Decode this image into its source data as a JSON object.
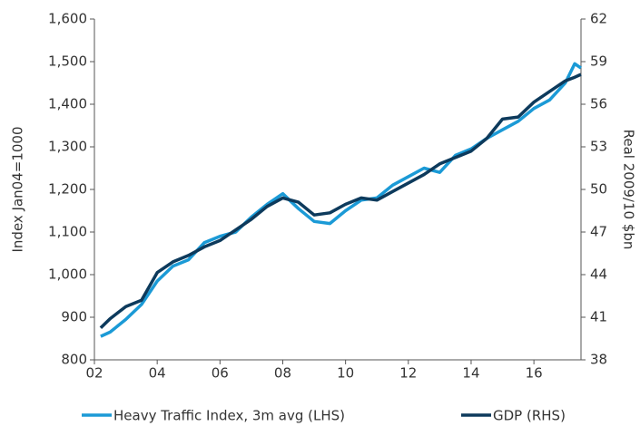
{
  "chart_data": {
    "type": "line",
    "x": [
      2.2,
      2.5,
      3,
      3.5,
      4,
      4.5,
      5,
      5.5,
      6,
      6.5,
      7,
      7.5,
      8,
      8.5,
      9,
      9.5,
      10,
      10.5,
      11,
      11.5,
      12,
      12.5,
      13,
      13.5,
      14,
      14.5,
      15,
      15.5,
      16,
      16.5,
      17,
      17.3,
      17.5
    ],
    "series": [
      {
        "name": "Heavy Traffic Index, 3m avg (LHS)",
        "color": "#1b9ad6",
        "values": [
          855,
          865,
          895,
          930,
          985,
          1020,
          1035,
          1075,
          1090,
          1100,
          1135,
          1165,
          1190,
          1155,
          1125,
          1120,
          1150,
          1175,
          1180,
          1210,
          1230,
          1250,
          1240,
          1280,
          1295,
          1320,
          1340,
          1360,
          1390,
          1410,
          1450,
          1495,
          1485
        ]
      },
      {
        "name": "GDP (RHS)",
        "color": "#0d3a5c",
        "axis": "y2",
        "values": [
          40.25,
          40.9,
          41.75,
          42.2,
          44.15,
          44.9,
          45.35,
          45.95,
          46.4,
          47.15,
          47.9,
          48.8,
          49.4,
          49.1,
          48.2,
          48.35,
          48.95,
          49.4,
          49.25,
          49.85,
          50.45,
          51.05,
          51.8,
          52.25,
          52.7,
          53.6,
          54.95,
          55.1,
          56.15,
          56.9,
          57.65,
          57.9,
          58.1
        ]
      }
    ],
    "xlim": [
      2,
      17.5
    ],
    "xticks": [
      {
        "value": 2,
        "label": "02"
      },
      {
        "value": 4,
        "label": "04"
      },
      {
        "value": 6,
        "label": "06"
      },
      {
        "value": 8,
        "label": "08"
      },
      10,
      12,
      14,
      16
    ],
    "ylim": [
      800,
      1600
    ],
    "yticks": [
      800,
      900,
      {
        "value": 1000,
        "label": "1,000"
      },
      {
        "value": 1100,
        "label": "1,100"
      },
      {
        "value": 1200,
        "label": "1,200"
      },
      {
        "value": 1300,
        "label": "1,300"
      },
      {
        "value": 1400,
        "label": "1,400"
      },
      {
        "value": 1500,
        "label": "1,500"
      },
      {
        "value": 1600,
        "label": "1,600"
      }
    ],
    "y2lim": [
      38,
      62
    ],
    "y2ticks": [
      38,
      41,
      44,
      47,
      50,
      53,
      56,
      59,
      62
    ],
    "ylabel": "Index Jan04=1000",
    "y2label": "Real 2009/10 $bn",
    "legend": "bottom"
  }
}
